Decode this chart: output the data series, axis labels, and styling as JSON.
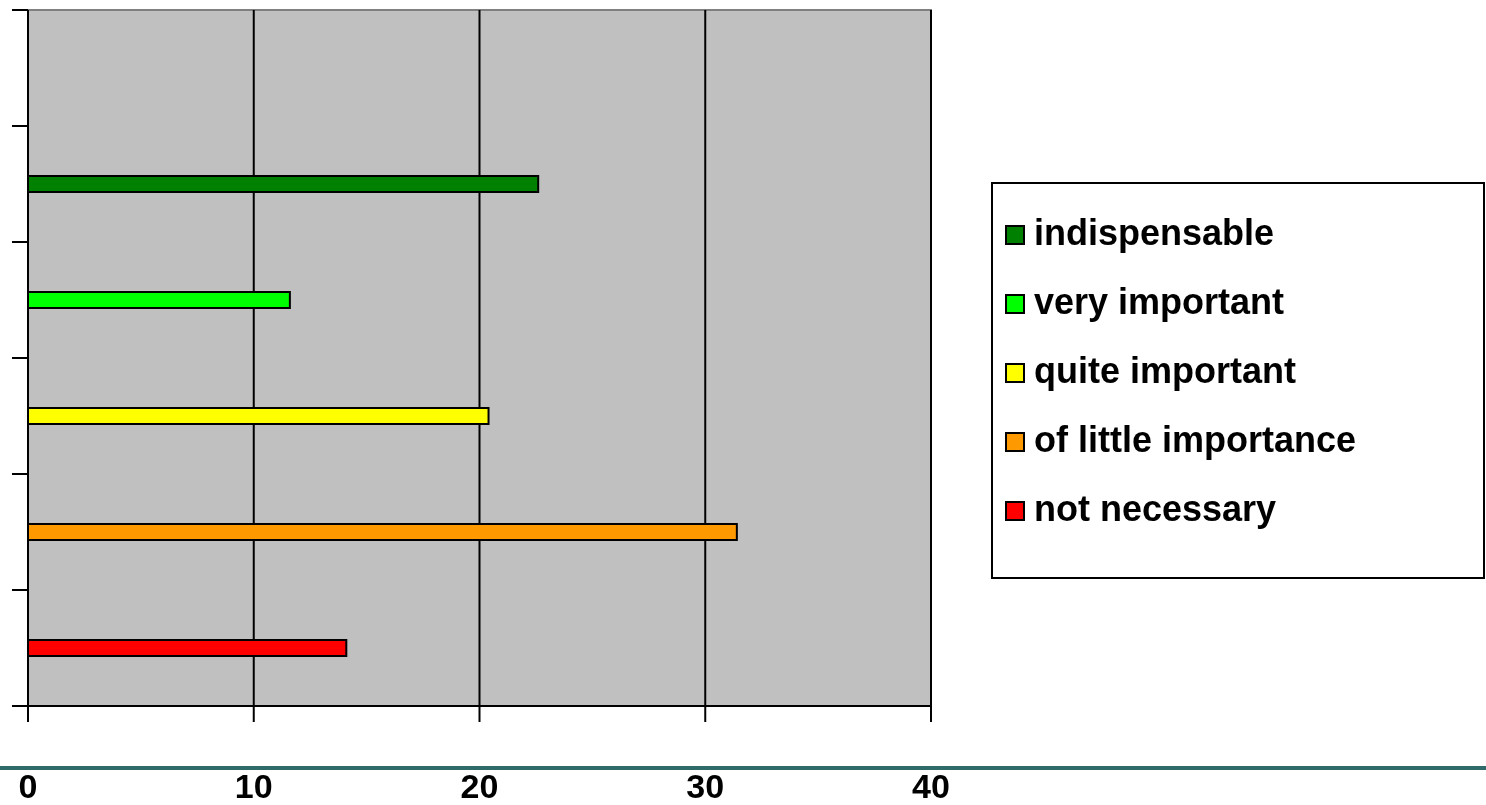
{
  "chart_data": {
    "type": "bar",
    "orientation": "horizontal",
    "categories": [
      null,
      null,
      null,
      null,
      null,
      null
    ],
    "series": [
      {
        "name": "indispensable",
        "color": "#008000",
        "values": [
          null,
          22.6,
          null,
          null,
          null,
          null
        ]
      },
      {
        "name": "very important",
        "color": "#00ff00",
        "values": [
          null,
          null,
          11.6,
          null,
          null,
          null
        ]
      },
      {
        "name": "quite important",
        "color": "#ffff00",
        "values": [
          null,
          null,
          null,
          20.4,
          null,
          null
        ]
      },
      {
        "name": "of little importance",
        "color": "#ff9900",
        "values": [
          null,
          null,
          null,
          null,
          31.4,
          null
        ]
      },
      {
        "name": "not necessary",
        "color": "#ff0000",
        "values": [
          null,
          null,
          null,
          null,
          null,
          14.1
        ]
      }
    ],
    "xlim": [
      0,
      40
    ],
    "xticks": [
      0,
      10,
      20,
      30,
      40
    ],
    "grid": "x",
    "legend": "right"
  }
}
